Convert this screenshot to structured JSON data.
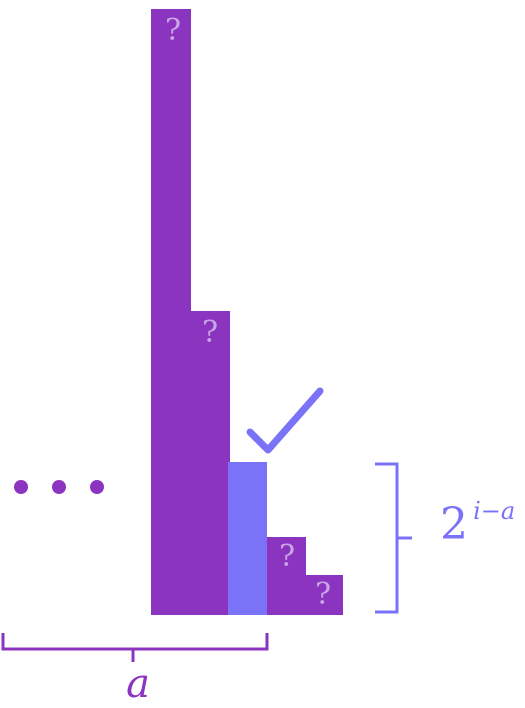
{
  "diagram": {
    "colors": {
      "purple": "#8a34c0",
      "blue": "#7b73f7",
      "question_mark": "#c9a6e6"
    },
    "ellipsis": "• • •",
    "bars": [
      {
        "label": "?",
        "highlighted": false
      },
      {
        "label": "?",
        "highlighted": false
      },
      {
        "label": "",
        "highlighted": true
      },
      {
        "label": "?",
        "highlighted": false
      },
      {
        "label": "?",
        "highlighted": false
      }
    ],
    "check_icon": "check-icon",
    "height_label": {
      "base": "2",
      "exponent": "i−a"
    },
    "width_label": "a"
  }
}
